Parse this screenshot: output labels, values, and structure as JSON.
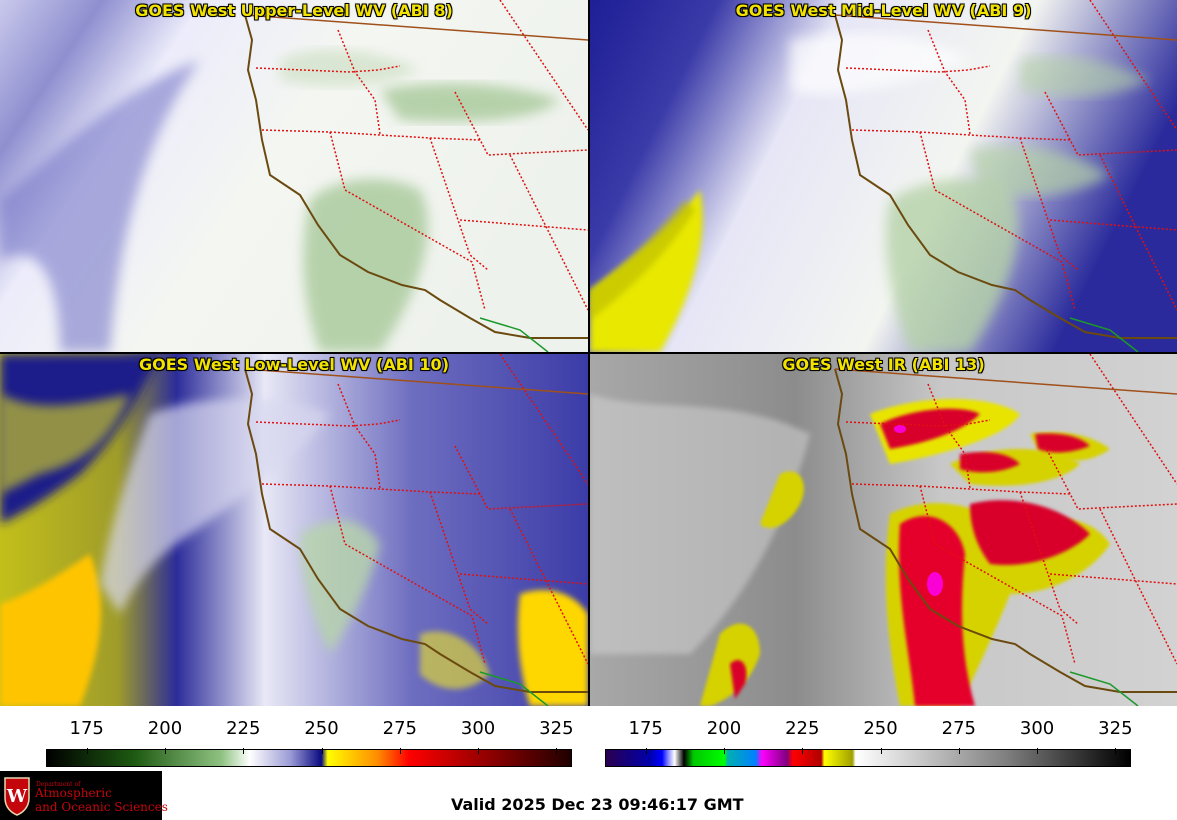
{
  "panels": [
    {
      "title": "GOES West Upper-Level WV (ABI 8)"
    },
    {
      "title": "GOES West Mid-Level WV (ABI 9)"
    },
    {
      "title": "GOES West Low-Level WV (ABI 10)"
    },
    {
      "title": "GOES West IR (ABI 13)"
    }
  ],
  "colorbars": [
    {
      "name": "water-vapor",
      "ticks": [
        175,
        200,
        225,
        250,
        275,
        300,
        325
      ],
      "range": [
        162,
        330
      ],
      "stops": [
        {
          "v": 162,
          "c": "#000000"
        },
        {
          "v": 190,
          "c": "#1e5a12"
        },
        {
          "v": 218,
          "c": "#8fc282"
        },
        {
          "v": 227,
          "c": "#ffffff"
        },
        {
          "v": 240,
          "c": "#9b9bd6"
        },
        {
          "v": 250,
          "c": "#0a0a80"
        },
        {
          "v": 252,
          "c": "#ffff00"
        },
        {
          "v": 268,
          "c": "#ff8c00"
        },
        {
          "v": 278,
          "c": "#ff0000"
        },
        {
          "v": 305,
          "c": "#8a0000"
        },
        {
          "v": 330,
          "c": "#200000"
        }
      ]
    },
    {
      "name": "infrared",
      "ticks": [
        175,
        200,
        225,
        250,
        275,
        300,
        325
      ],
      "range": [
        162,
        330
      ],
      "stops": [
        {
          "v": 162,
          "c": "#2a0050"
        },
        {
          "v": 176,
          "c": "#0000aa"
        },
        {
          "v": 180,
          "c": "#0000ff"
        },
        {
          "v": 182,
          "c": "#8a8aff"
        },
        {
          "v": 184,
          "c": "#ffffff"
        },
        {
          "v": 187,
          "c": "#000000"
        },
        {
          "v": 190,
          "c": "#00c800"
        },
        {
          "v": 200,
          "c": "#00ff00"
        },
        {
          "v": 201,
          "c": "#00b0b0"
        },
        {
          "v": 210,
          "c": "#0080ff"
        },
        {
          "v": 212,
          "c": "#ff00ff"
        },
        {
          "v": 220,
          "c": "#800080"
        },
        {
          "v": 222,
          "c": "#ff0000"
        },
        {
          "v": 231,
          "c": "#b00000"
        },
        {
          "v": 232,
          "c": "#ffff00"
        },
        {
          "v": 241,
          "c": "#a0a000"
        },
        {
          "v": 242,
          "c": "#ffffff"
        },
        {
          "v": 290,
          "c": "#808080"
        },
        {
          "v": 330,
          "c": "#000000"
        }
      ]
    }
  ],
  "logo": {
    "line1": "Department of",
    "line2": "Atmospheric",
    "line3": "and Oceanic Sciences"
  },
  "valid_time": "Valid 2025 Dec 23 09:46:17 GMT",
  "colors": {
    "title_text": "#f2e200",
    "state_borders": "#e01010",
    "coastline": "#6b4a10",
    "mexico_border": "#1a9a2a",
    "logo_red": "#c5050c"
  }
}
